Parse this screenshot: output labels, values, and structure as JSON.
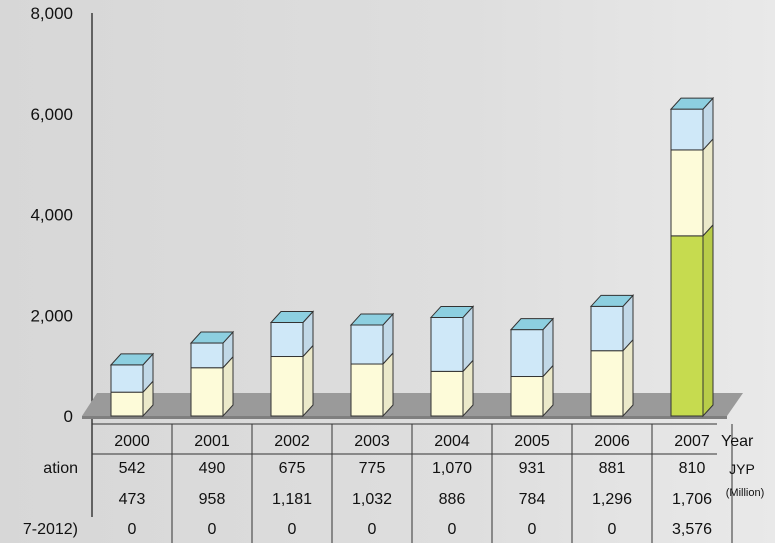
{
  "chart_data": {
    "type": "bar",
    "stacked": true,
    "style": "3d",
    "categories": [
      "2000",
      "2001",
      "2002",
      "2003",
      "2004",
      "2005",
      "2006",
      "2007"
    ],
    "series": [
      {
        "name": "ation",
        "values": [
          542,
          490,
          675,
          775,
          1070,
          931,
          881,
          810
        ],
        "color": "#cfe8f8"
      },
      {
        "name": "",
        "values": [
          473,
          958,
          1181,
          1032,
          886,
          784,
          1296,
          1706
        ],
        "color": "#fdfbd9"
      },
      {
        "name": "7-2012)",
        "values": [
          0,
          0,
          0,
          0,
          0,
          0,
          0,
          3576
        ],
        "color": "#c6db4f"
      }
    ],
    "series_display": [
      [
        "542",
        "490",
        "675",
        "775",
        "1,070",
        "931",
        "881",
        "810"
      ],
      [
        "473",
        "958",
        "1,181",
        "1,032",
        "886",
        "784",
        "1,296",
        "1,706"
      ],
      [
        "0",
        "0",
        "0",
        "0",
        "0",
        "0",
        "0",
        "3,576"
      ]
    ],
    "y_ticks": [
      "0",
      "2,000",
      "4,000",
      "6,000",
      "8,000"
    ],
    "ylim": [
      0,
      8000
    ],
    "xlabel": "Year",
    "unit": "JYP",
    "unit_sub": "(Million)",
    "grid": false,
    "legend": "table-below"
  }
}
